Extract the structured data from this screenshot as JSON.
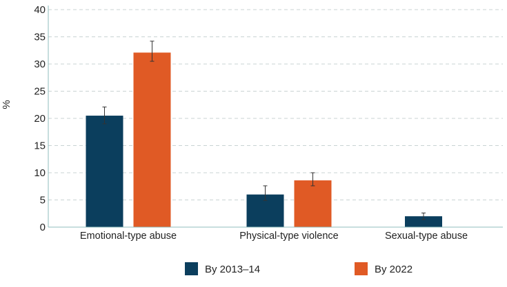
{
  "chart_data": {
    "type": "bar",
    "ylabel": "%",
    "xlabel": "",
    "ylim": [
      0,
      40
    ],
    "yticks": [
      "0",
      "5",
      "10",
      "15",
      "20",
      "25",
      "30",
      "35",
      "40"
    ],
    "categories": [
      "Emotional-type abuse",
      "Physical-type violence",
      "Sexual-type abuse"
    ],
    "series": [
      {
        "name": "By 2013–14",
        "color": "#0b3e5d",
        "values": [
          20.5,
          6.0,
          2.0
        ],
        "error_low": [
          19.0,
          4.9,
          1.4
        ],
        "error_high": [
          22.1,
          7.6,
          2.6
        ]
      },
      {
        "name": "By 2022",
        "color": "#e05a25",
        "values": [
          32.1,
          8.6,
          null
        ],
        "error_low": [
          30.5,
          7.6,
          null
        ],
        "error_high": [
          34.2,
          10.0,
          null
        ]
      }
    ],
    "grid": true,
    "legend_position": "bottom"
  }
}
